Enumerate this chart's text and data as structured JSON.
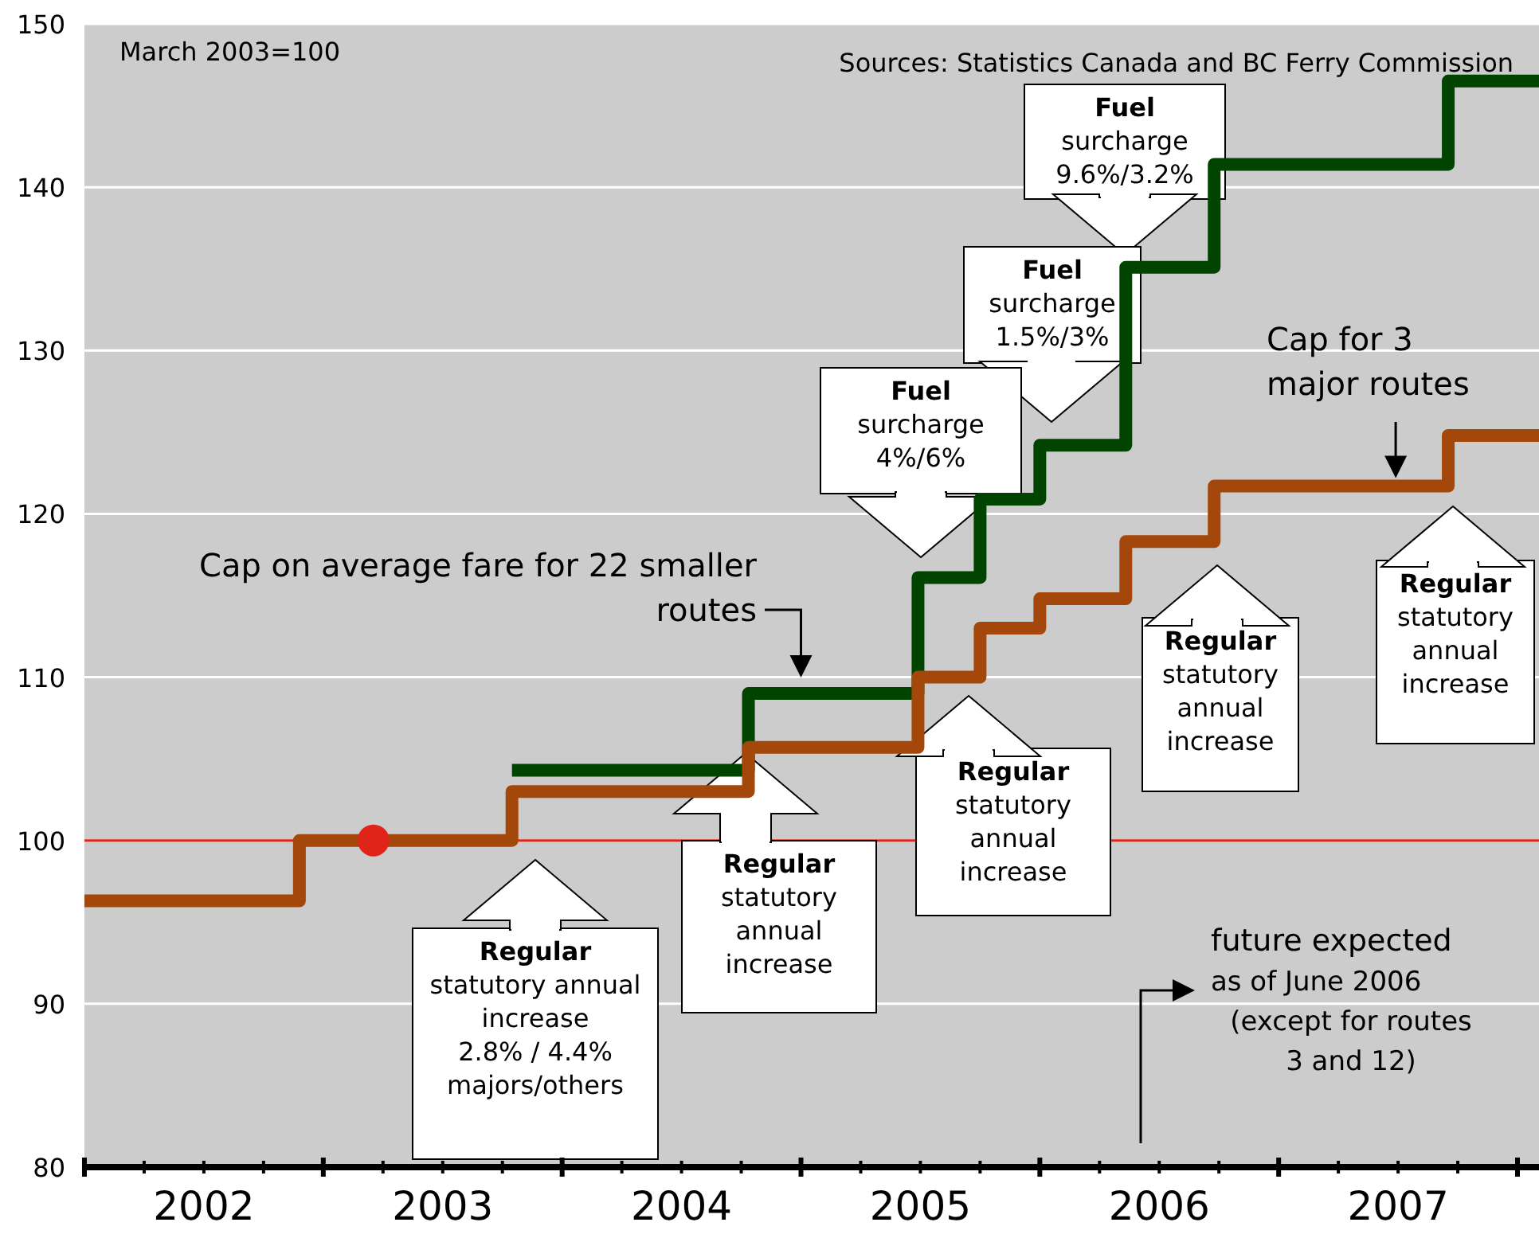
{
  "chart_data": {
    "type": "step",
    "xlim": [
      2002,
      2008.09
    ],
    "ylim": [
      80,
      150
    ],
    "yticks": [
      80,
      90,
      100,
      110,
      120,
      130,
      140,
      150
    ],
    "xticks": [
      {
        "value": 2002,
        "label": null
      },
      {
        "value": 2002.25,
        "label": null
      },
      {
        "value": 2002.5,
        "label": "2002"
      },
      {
        "value": 2002.75,
        "label": null
      },
      {
        "value": 2003,
        "label": null
      },
      {
        "value": 2003.25,
        "label": null
      },
      {
        "value": 2003.5,
        "label": "2003"
      },
      {
        "value": 2003.75,
        "label": null
      },
      {
        "value": 2004,
        "label": null
      },
      {
        "value": 2004.25,
        "label": null
      },
      {
        "value": 2004.5,
        "label": "2004"
      },
      {
        "value": 2004.75,
        "label": null
      },
      {
        "value": 2005,
        "label": null
      },
      {
        "value": 2005.25,
        "label": null
      },
      {
        "value": 2005.5,
        "label": "2005"
      },
      {
        "value": 2005.75,
        "label": null
      },
      {
        "value": 2006,
        "label": null
      },
      {
        "value": 2006.25,
        "label": null
      },
      {
        "value": 2006.5,
        "label": "2006"
      },
      {
        "value": 2006.75,
        "label": null
      },
      {
        "value": 2007,
        "label": null
      },
      {
        "value": 2007.25,
        "label": null
      },
      {
        "value": 2007.5,
        "label": "2007"
      },
      {
        "value": 2007.75,
        "label": null
      },
      {
        "value": 2008,
        "label": null
      }
    ],
    "grid": "y",
    "series": [
      {
        "color": "#004400",
        "x": [
          2003.79,
          2004.78,
          2005.49,
          2005.75,
          2006.0,
          2006.36,
          2006.73,
          2007.71,
          2008.09
        ],
        "values": [
          104.3,
          109,
          116.1,
          120.9,
          124.2,
          135.1,
          141.4,
          146.5,
          146.5
        ]
      },
      {
        "color": "#a3470b",
        "x": [
          2002.0,
          2002.9,
          2003.79,
          2004.78,
          2005.49,
          2005.75,
          2006.0,
          2006.36,
          2006.73,
          2007.71,
          2008.09
        ],
        "values": [
          96.3,
          100,
          103,
          105.7,
          110,
          113,
          114.8,
          118.3,
          121.7,
          124.8,
          124.8
        ]
      },
      {
        "type": "scatter",
        "color": "#e0241a",
        "x": [
          2003.21
        ],
        "values": [
          100
        ]
      }
    ],
    "ref_lines": [
      {
        "axis": "y",
        "value": 100,
        "color": "#e0241a"
      }
    ],
    "annotations": [
      "March 2003=100",
      "Sources: Statistics Canada and BC Ferry Commission",
      "Fuel\nsurcharge\n9.6%/3.2%",
      "Fuel\nsurcharge\n1.5%/3%",
      "Fuel\nsurcharge\n4%/6%",
      {
        "text": "Cap on average fare for 22 smaller\nroutes",
        "x": 2005.0,
        "y": 109
      },
      {
        "text": "Cap for 3\nmajor routes",
        "x": 2007.49,
        "y": 121.7
      },
      "Regular\nstatutory annual\nincrease\n2.8% / 4.4%\nmajors/others",
      "Regular\nstatutory\nannual\nincrease",
      "Regular\nstatutory\nannual\nincrease",
      "Regular\nstatutory\nannual\nincrease",
      "Regular\nstatutory\nannual\nincrease",
      "future expected\nas of June 2006\n(except for routes\n3 and 12)"
    ]
  }
}
